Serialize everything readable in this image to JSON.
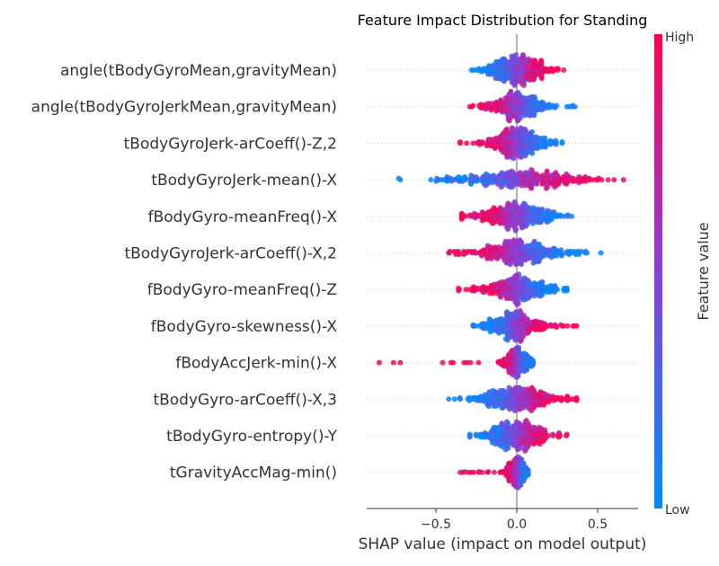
{
  "chart_data": {
    "type": "scatter",
    "subtype": "beeswarm",
    "title": "Feature Impact Distribution for Standing",
    "xlabel": "SHAP value (impact on model output)",
    "xlim": [
      -0.93,
      0.75
    ],
    "xticks": [
      -0.5,
      0.0,
      0.5
    ],
    "xtick_labels": [
      "−0.5",
      "0.0",
      "0.5"
    ],
    "grid": false,
    "colorbar": {
      "label": "Feature value",
      "high_label": "High",
      "low_label": "Low",
      "low_color": "#008bfb",
      "mid_color": "#8a3fd6",
      "high_color": "#ff0052"
    },
    "features": [
      {
        "name": "angle(tBodyGyroMean,gravityMean)",
        "shap_min": -0.28,
        "shap_max": 0.29,
        "high_value_side": "positive"
      },
      {
        "name": "angle(tBodyGyroJerkMean,gravityMean)",
        "shap_min": -0.29,
        "shap_max": 0.36,
        "high_value_side": "negative"
      },
      {
        "name": "tBodyGyroJerk-arCoeff()-Z,2",
        "shap_min": -0.35,
        "shap_max": 0.28,
        "high_value_side": "negative"
      },
      {
        "name": "tBodyGyroJerk-mean()-X",
        "shap_min": -0.73,
        "shap_max": 0.66,
        "high_value_side": "positive"
      },
      {
        "name": "fBodyGyro-meanFreq()-X",
        "shap_min": -0.34,
        "shap_max": 0.34,
        "high_value_side": "negative"
      },
      {
        "name": "tBodyGyroJerk-arCoeff()-X,2",
        "shap_min": -0.42,
        "shap_max": 0.52,
        "high_value_side": "negative"
      },
      {
        "name": "fBodyGyro-meanFreq()-Z",
        "shap_min": -0.36,
        "shap_max": 0.31,
        "high_value_side": "negative"
      },
      {
        "name": "fBodyGyro-skewness()-X",
        "shap_min": -0.27,
        "shap_max": 0.37,
        "high_value_side": "positive"
      },
      {
        "name": "fBodyAccJerk-min()-X",
        "shap_min": -0.85,
        "shap_max": 0.1,
        "high_value_side": "negative"
      },
      {
        "name": "tBodyGyro-arCoeff()-X,3",
        "shap_min": -0.42,
        "shap_max": 0.37,
        "high_value_side": "positive"
      },
      {
        "name": "tBodyGyro-entropy()-Y",
        "shap_min": -0.29,
        "shap_max": 0.31,
        "high_value_side": "positive"
      },
      {
        "name": "tGravityAccMag-min()",
        "shap_min": -0.35,
        "shap_max": 0.07,
        "high_value_side": "negative"
      }
    ]
  }
}
